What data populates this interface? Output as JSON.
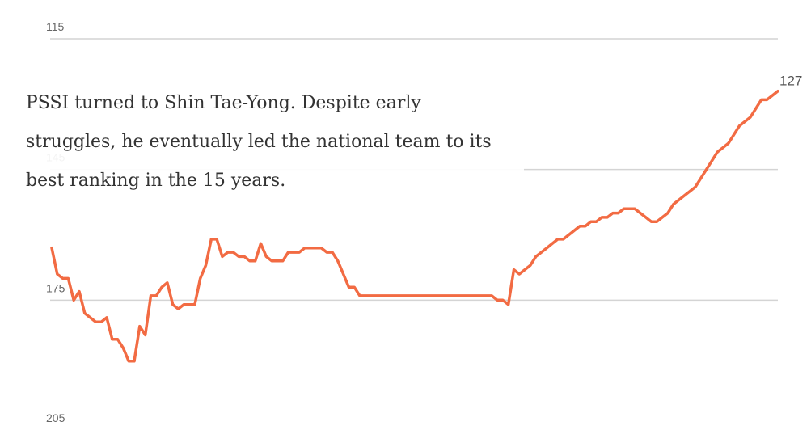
{
  "chart_data": {
    "type": "line",
    "y_axis": {
      "inverted": true,
      "ylim": [
        115,
        205
      ],
      "ticks": [
        115,
        145,
        175,
        205
      ],
      "tick_labels": [
        "115",
        "145",
        "175",
        "205"
      ],
      "grid": true
    },
    "series": [
      {
        "values": [
          163,
          169,
          170,
          170,
          175,
          173,
          178,
          179,
          180,
          180,
          179,
          184,
          184,
          186,
          189,
          189,
          181,
          183,
          174,
          174,
          172,
          171,
          176,
          177,
          176,
          176,
          176,
          170,
          167,
          161,
          161,
          165,
          164,
          164,
          165,
          165,
          166,
          166,
          162,
          165,
          166,
          166,
          166,
          164,
          164,
          164,
          163,
          163,
          163,
          163,
          164,
          164,
          166,
          169,
          172,
          172,
          174,
          174,
          174,
          174,
          174,
          174,
          174,
          174,
          174,
          174,
          174,
          174,
          174,
          174,
          174,
          174,
          174,
          174,
          174,
          174,
          174,
          174,
          174,
          174,
          174,
          175,
          175,
          176,
          168,
          169,
          168,
          167,
          165,
          164,
          163,
          162,
          161,
          161,
          160,
          159,
          158,
          158,
          157,
          157,
          156,
          156,
          155,
          155,
          154,
          154,
          154,
          155,
          156,
          157,
          157,
          156,
          155,
          153,
          152,
          151,
          150,
          149,
          147,
          145,
          143,
          141,
          140,
          139,
          137,
          135,
          134,
          133,
          131,
          129,
          129,
          128,
          127
        ],
        "end_label": "127"
      }
    ],
    "colors": {
      "line": "#f26b43",
      "grid": "#d4d4d4"
    }
  },
  "caption": {
    "line1": "PSSI turned to Shin Tae-Yong. Despite early",
    "line2": "struggles, he eventually led the national team to its",
    "line3": "best ranking in the 15 years."
  }
}
